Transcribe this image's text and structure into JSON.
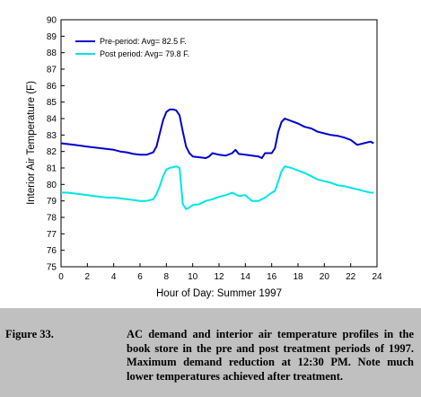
{
  "chart_data": {
    "type": "line",
    "title": "",
    "xlabel": "Hour of Day: Summer 1997",
    "ylabel": "Interior Air Temperature (F)",
    "xlim": [
      0,
      24
    ],
    "ylim": [
      75,
      90
    ],
    "xticks": [
      0,
      2,
      4,
      6,
      8,
      10,
      12,
      14,
      16,
      18,
      20,
      22,
      24
    ],
    "yticks": [
      75,
      76,
      77,
      78,
      79,
      80,
      81,
      82,
      83,
      84,
      85,
      86,
      87,
      88,
      89,
      90
    ],
    "grid": false,
    "legend_position": "top-left",
    "series": [
      {
        "name": "Pre-period: Avg= 82.5 F.",
        "color": "#0000cc",
        "x": [
          0,
          0.5,
          1,
          1.5,
          2,
          2.5,
          3,
          3.5,
          4,
          4.5,
          5,
          5.5,
          6,
          6.5,
          7,
          7.25,
          7.5,
          7.75,
          8,
          8.25,
          8.5,
          8.75,
          9,
          9.25,
          9.5,
          9.75,
          10,
          10.5,
          11,
          11.25,
          11.5,
          12,
          12.5,
          13,
          13.25,
          13.5,
          14,
          14.5,
          15,
          15.25,
          15.5,
          16,
          16.25,
          16.5,
          16.75,
          17,
          17.5,
          18,
          18.5,
          19,
          19.5,
          20,
          20.5,
          21,
          21.5,
          22,
          22.5,
          23,
          23.5,
          23.75
        ],
        "values": [
          82.5,
          82.45,
          82.4,
          82.35,
          82.3,
          82.25,
          82.2,
          82.15,
          82.1,
          82.0,
          81.95,
          81.85,
          81.8,
          81.8,
          81.95,
          82.3,
          83.1,
          83.9,
          84.4,
          84.55,
          84.55,
          84.5,
          84.2,
          83.2,
          82.3,
          81.9,
          81.7,
          81.65,
          81.6,
          81.7,
          81.9,
          81.8,
          81.75,
          81.9,
          82.1,
          81.85,
          81.8,
          81.75,
          81.7,
          81.6,
          81.9,
          81.9,
          82.2,
          83.2,
          83.8,
          84.0,
          83.85,
          83.7,
          83.5,
          83.4,
          83.2,
          83.1,
          83.0,
          82.95,
          82.85,
          82.7,
          82.4,
          82.5,
          82.6,
          82.5
        ]
      },
      {
        "name": "Post period: Avg= 79.8 F.",
        "color": "#00e5e5",
        "x": [
          0,
          0.5,
          1,
          1.5,
          2,
          2.5,
          3,
          3.5,
          4,
          4.5,
          5,
          5.5,
          6,
          6.5,
          7,
          7.25,
          7.5,
          7.75,
          8,
          8.25,
          8.5,
          8.75,
          9,
          9.25,
          9.5,
          9.75,
          10,
          10.5,
          11,
          11.5,
          12,
          12.5,
          13,
          13.5,
          14,
          14.5,
          15,
          15.5,
          16,
          16.25,
          16.5,
          16.75,
          17,
          17.5,
          18,
          18.5,
          19,
          19.5,
          20,
          20.5,
          21,
          21.5,
          22,
          22.5,
          23,
          23.5,
          23.75
        ],
        "values": [
          79.5,
          79.5,
          79.45,
          79.4,
          79.35,
          79.3,
          79.25,
          79.2,
          79.2,
          79.15,
          79.1,
          79.05,
          79.0,
          79.0,
          79.1,
          79.4,
          79.9,
          80.5,
          80.9,
          81.0,
          81.05,
          81.1,
          81.0,
          78.8,
          78.5,
          78.6,
          78.75,
          78.8,
          79.0,
          79.1,
          79.25,
          79.35,
          79.5,
          79.3,
          79.35,
          79.0,
          79.0,
          79.2,
          79.5,
          79.6,
          80.2,
          80.8,
          81.1,
          81.0,
          80.85,
          80.7,
          80.5,
          80.3,
          80.2,
          80.1,
          79.95,
          79.9,
          79.8,
          79.7,
          79.6,
          79.5,
          79.5
        ]
      }
    ]
  },
  "caption": {
    "label": "Figure 33.",
    "text": "AC demand and interior air temperature profiles in the book store in the pre and post treatment periods of 1997. Maximum demand reduction at 12:30 PM. Note much lower temperatures achieved after treatment."
  }
}
